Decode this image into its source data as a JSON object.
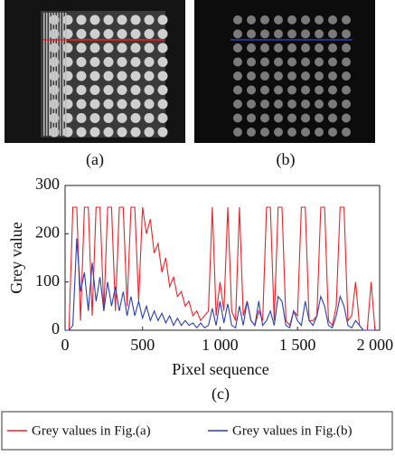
{
  "panels": [
    {
      "label": "(a)"
    },
    {
      "label": "(b)"
    }
  ],
  "chart_data": {
    "type": "line",
    "caption": "(c)",
    "x_label": "Pixel sequence",
    "y_label": "Grey value",
    "x": [
      0,
      25,
      50,
      75,
      100,
      125,
      150,
      175,
      200,
      225,
      250,
      275,
      300,
      325,
      350,
      375,
      400,
      425,
      450,
      475,
      500,
      525,
      550,
      575,
      600,
      625,
      650,
      675,
      700,
      725,
      750,
      775,
      800,
      825,
      850,
      875,
      900,
      925,
      950,
      975,
      1000,
      1025,
      1050,
      1075,
      1100,
      1125,
      1150,
      1175,
      1200,
      1225,
      1250,
      1275,
      1300,
      1325,
      1350,
      1375,
      1400,
      1425,
      1450,
      1475,
      1500,
      1525,
      1550,
      1575,
      1600,
      1625,
      1650,
      1675,
      1700,
      1725,
      1750,
      1775,
      1800,
      1825,
      1850,
      1875,
      1900,
      1925,
      1950,
      1975,
      2000
    ],
    "series": [
      {
        "name": "Grey values in Fig.(a)",
        "color": "#e8242a",
        "values": [
          0,
          0,
          255,
          255,
          20,
          255,
          255,
          30,
          255,
          255,
          40,
          255,
          255,
          40,
          255,
          255,
          50,
          255,
          255,
          60,
          255,
          200,
          230,
          160,
          180,
          120,
          150,
          90,
          110,
          70,
          80,
          50,
          60,
          30,
          40,
          20,
          30,
          40,
          255,
          30,
          100,
          40,
          255,
          40,
          20,
          255,
          30,
          60,
          20,
          10,
          40,
          20,
          255,
          255,
          20,
          255,
          255,
          20,
          10,
          40,
          30,
          255,
          255,
          20,
          20,
          30,
          255,
          255,
          20,
          10,
          50,
          255,
          255,
          20,
          30,
          100,
          10,
          0,
          0,
          100,
          0
        ]
      },
      {
        "name": "Grey values in Fig.(b)",
        "color": "#2a3fb0",
        "values": [
          0,
          0,
          10,
          190,
          80,
          120,
          40,
          140,
          60,
          110,
          40,
          100,
          50,
          90,
          40,
          80,
          30,
          70,
          30,
          60,
          25,
          50,
          20,
          40,
          20,
          35,
          15,
          30,
          10,
          25,
          10,
          20,
          10,
          15,
          5,
          15,
          5,
          10,
          45,
          10,
          60,
          15,
          55,
          10,
          5,
          50,
          10,
          60,
          20,
          10,
          60,
          10,
          20,
          40,
          10,
          70,
          60,
          10,
          5,
          40,
          20,
          10,
          60,
          20,
          10,
          30,
          70,
          50,
          10,
          5,
          30,
          70,
          50,
          10,
          5,
          20,
          10,
          0,
          0,
          0,
          0
        ]
      }
    ],
    "xlim": [
      0,
      2030
    ],
    "ylim": [
      0,
      300
    ],
    "xticks": [
      0,
      500,
      {
        "value": 1000,
        "label": "1 000"
      },
      {
        "value": 1500,
        "label": "1 500"
      },
      {
        "value": 2000,
        "label": "2 000"
      }
    ],
    "yticks": [
      0,
      100,
      200,
      300
    ]
  }
}
